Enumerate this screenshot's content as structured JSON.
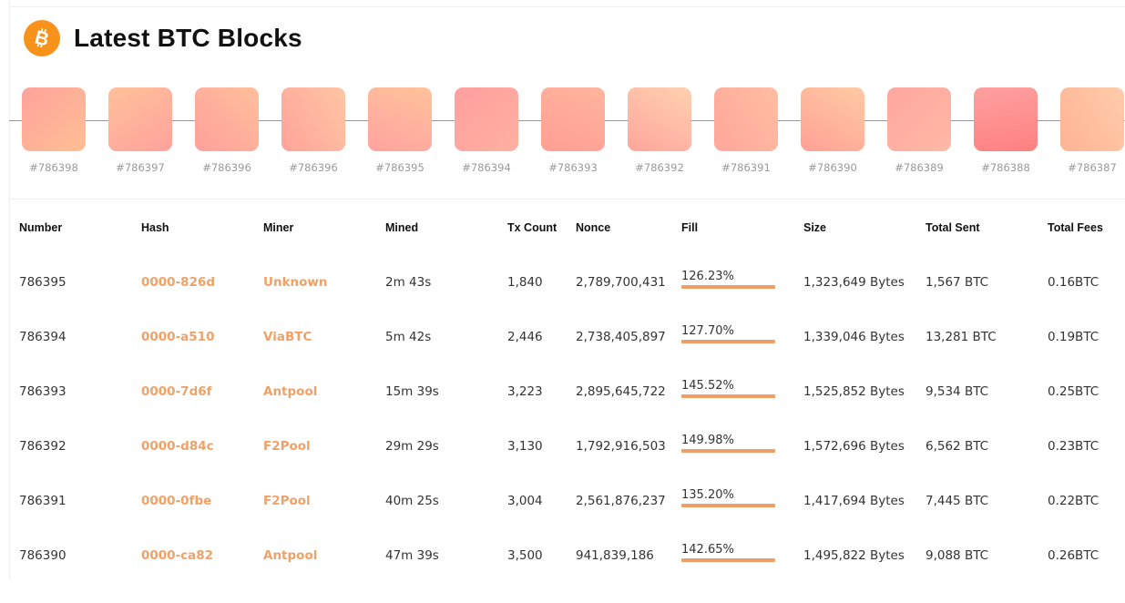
{
  "header": {
    "title": "Latest BTC Blocks",
    "logo_icon": "bitcoin-icon",
    "logo_color": "#f7931a"
  },
  "timeline": {
    "blocks": [
      {
        "label": "#786398",
        "gradient": "linear-gradient(135deg, #ffa39c 0%, #ffbf94 100%)"
      },
      {
        "label": "#786397",
        "gradient": "linear-gradient(150deg, #ffc19a 0%, #ffa29c 100%)"
      },
      {
        "label": "#786396",
        "gradient": "linear-gradient(45deg, #ffa09a 0%, #ffbf9d 100%)"
      },
      {
        "label": "#786396",
        "gradient": "linear-gradient(60deg, #ffa39a 0%, #ffc6a4 100%)"
      },
      {
        "label": "#786395",
        "gradient": "linear-gradient(20deg, #ffa3a0 0%, #ffc29a 100%)"
      },
      {
        "label": "#786394",
        "gradient": "linear-gradient(135deg, #ff9f9f 0%, #ffb0a0 100%)"
      },
      {
        "label": "#786393",
        "gradient": "linear-gradient(200deg, #ffb49d 0%, #ff9f94 100%)"
      },
      {
        "label": "#786392",
        "gradient": "linear-gradient(30deg, #ffa59c 0%, #ffd1b0 100%)"
      },
      {
        "label": "#786391",
        "gradient": "linear-gradient(60deg, #ffa69b 0%, #ffbea1 100%)"
      },
      {
        "label": "#786390",
        "gradient": "linear-gradient(30deg, #ffa195 0%, #ffcaa4 100%)"
      },
      {
        "label": "#786389",
        "gradient": "linear-gradient(135deg, #ffa7a0 0%, #ffb8a4 100%)"
      },
      {
        "label": "#786388",
        "gradient": "linear-gradient(170deg, #ffa0a0 0%, #ff8080 100%)"
      },
      {
        "label": "#786387",
        "gradient": "linear-gradient(60deg, #ffb396 0%, #ffcca9 100%)"
      }
    ]
  },
  "table": {
    "columns": [
      "Number",
      "Hash",
      "Miner",
      "Mined",
      "Tx Count",
      "Nonce",
      "Fill",
      "Size",
      "Total Sent",
      "Total Fees"
    ],
    "rows": [
      {
        "number": "786395",
        "hash": "0000-826d",
        "miner": "Unknown",
        "mined": "2m 43s",
        "tx_count": "1,840",
        "nonce": "2,789,700,431",
        "fill": "126.23%",
        "size": "1,323,649 Bytes",
        "total_sent": "1,567 BTC",
        "total_fees": "0.16BTC"
      },
      {
        "number": "786394",
        "hash": "0000-a510",
        "miner": "ViaBTC",
        "mined": "5m 42s",
        "tx_count": "2,446",
        "nonce": "2,738,405,897",
        "fill": "127.70%",
        "size": "1,339,046 Bytes",
        "total_sent": "13,281 BTC",
        "total_fees": "0.19BTC"
      },
      {
        "number": "786393",
        "hash": "0000-7d6f",
        "miner": "Antpool",
        "mined": "15m 39s",
        "tx_count": "3,223",
        "nonce": "2,895,645,722",
        "fill": "145.52%",
        "size": "1,525,852 Bytes",
        "total_sent": "9,534 BTC",
        "total_fees": "0.25BTC"
      },
      {
        "number": "786392",
        "hash": "0000-d84c",
        "miner": "F2Pool",
        "mined": "29m 29s",
        "tx_count": "3,130",
        "nonce": "1,792,916,503",
        "fill": "149.98%",
        "size": "1,572,696 Bytes",
        "total_sent": "6,562 BTC",
        "total_fees": "0.23BTC"
      },
      {
        "number": "786391",
        "hash": "0000-0fbe",
        "miner": "F2Pool",
        "mined": "40m 25s",
        "tx_count": "3,004",
        "nonce": "2,561,876,237",
        "fill": "135.20%",
        "size": "1,417,694 Bytes",
        "total_sent": "7,445 BTC",
        "total_fees": "0.22BTC"
      },
      {
        "number": "786390",
        "hash": "0000-ca82",
        "miner": "Antpool",
        "mined": "47m 39s",
        "tx_count": "3,500",
        "nonce": "941,839,186",
        "fill": "142.65%",
        "size": "1,495,822 Bytes",
        "total_sent": "9,088 BTC",
        "total_fees": "0.26BTC"
      }
    ]
  },
  "colors": {
    "accent": "#f0a168",
    "fill_bar": "#ee9e66",
    "brand": "#f7931a"
  }
}
